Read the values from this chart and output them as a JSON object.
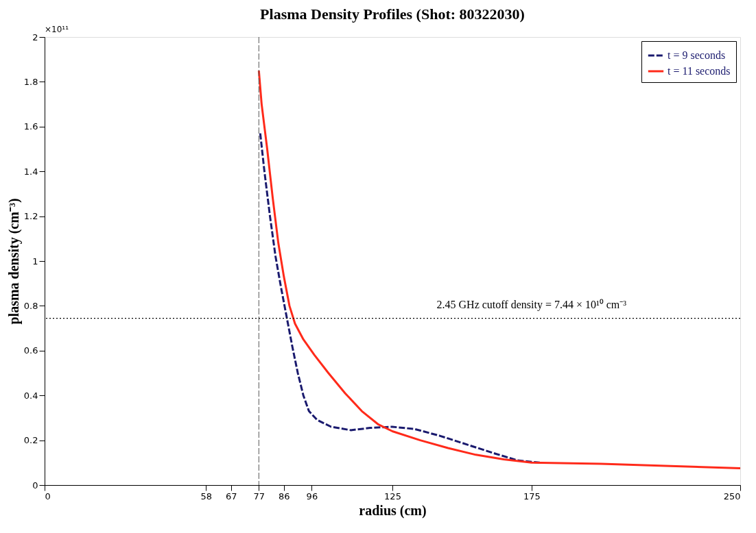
{
  "chart_data": {
    "type": "line",
    "title": "Plasma Density Profiles (Shot: 80322030)",
    "xlabel": "radius (cm)",
    "ylabel": "plasma density (cm⁻³)",
    "xlim": [
      0,
      250
    ],
    "xticks": [
      0,
      58,
      67,
      77,
      86,
      96,
      125,
      175,
      250
    ],
    "ylim": [
      0,
      2
    ],
    "yticks": [
      0,
      0.2,
      0.4,
      0.6,
      0.8,
      1,
      1.2,
      1.4,
      1.6,
      1.8,
      2
    ],
    "annotations": [
      "×10¹¹",
      {
        "text": "2.45 GHz cutoff density = 7.44 × 10¹⁰ cm⁻³",
        "x": 175,
        "y": 0.744
      }
    ],
    "ref_lines": [
      {
        "axis": "x",
        "value": 77,
        "line_style": "dashed",
        "color": "#555555"
      },
      {
        "axis": "y",
        "value": 0.744,
        "line_style": "dotted",
        "color": "#000000"
      }
    ],
    "legend": "top right",
    "grid": false,
    "series": [
      {
        "name": "t = 9 seconds",
        "color": "#1a1a6e",
        "line_style": "dashed",
        "x": [
          77.5,
          79,
          81,
          83,
          85,
          87,
          89,
          91,
          93,
          95,
          98,
          103,
          110,
          117,
          125,
          133,
          142,
          152,
          162,
          170,
          178
        ],
        "values": [
          1.57,
          1.4,
          1.2,
          1.02,
          0.88,
          0.75,
          0.62,
          0.5,
          0.4,
          0.33,
          0.29,
          0.26,
          0.245,
          0.255,
          0.26,
          0.25,
          0.22,
          0.18,
          0.14,
          0.11,
          0.1
        ]
      },
      {
        "name": "t = 11 seconds",
        "color": "#ff2a1a",
        "line_style": "solid",
        "x": [
          77,
          78,
          80,
          82,
          84,
          86,
          88,
          90,
          93,
          97,
          102,
          108,
          114,
          120,
          125,
          135,
          145,
          155,
          165,
          175,
          200,
          225,
          250
        ],
        "values": [
          1.85,
          1.7,
          1.5,
          1.28,
          1.08,
          0.93,
          0.8,
          0.72,
          0.65,
          0.58,
          0.5,
          0.41,
          0.33,
          0.27,
          0.24,
          0.2,
          0.165,
          0.135,
          0.115,
          0.1,
          0.095,
          0.085,
          0.075
        ]
      }
    ]
  }
}
